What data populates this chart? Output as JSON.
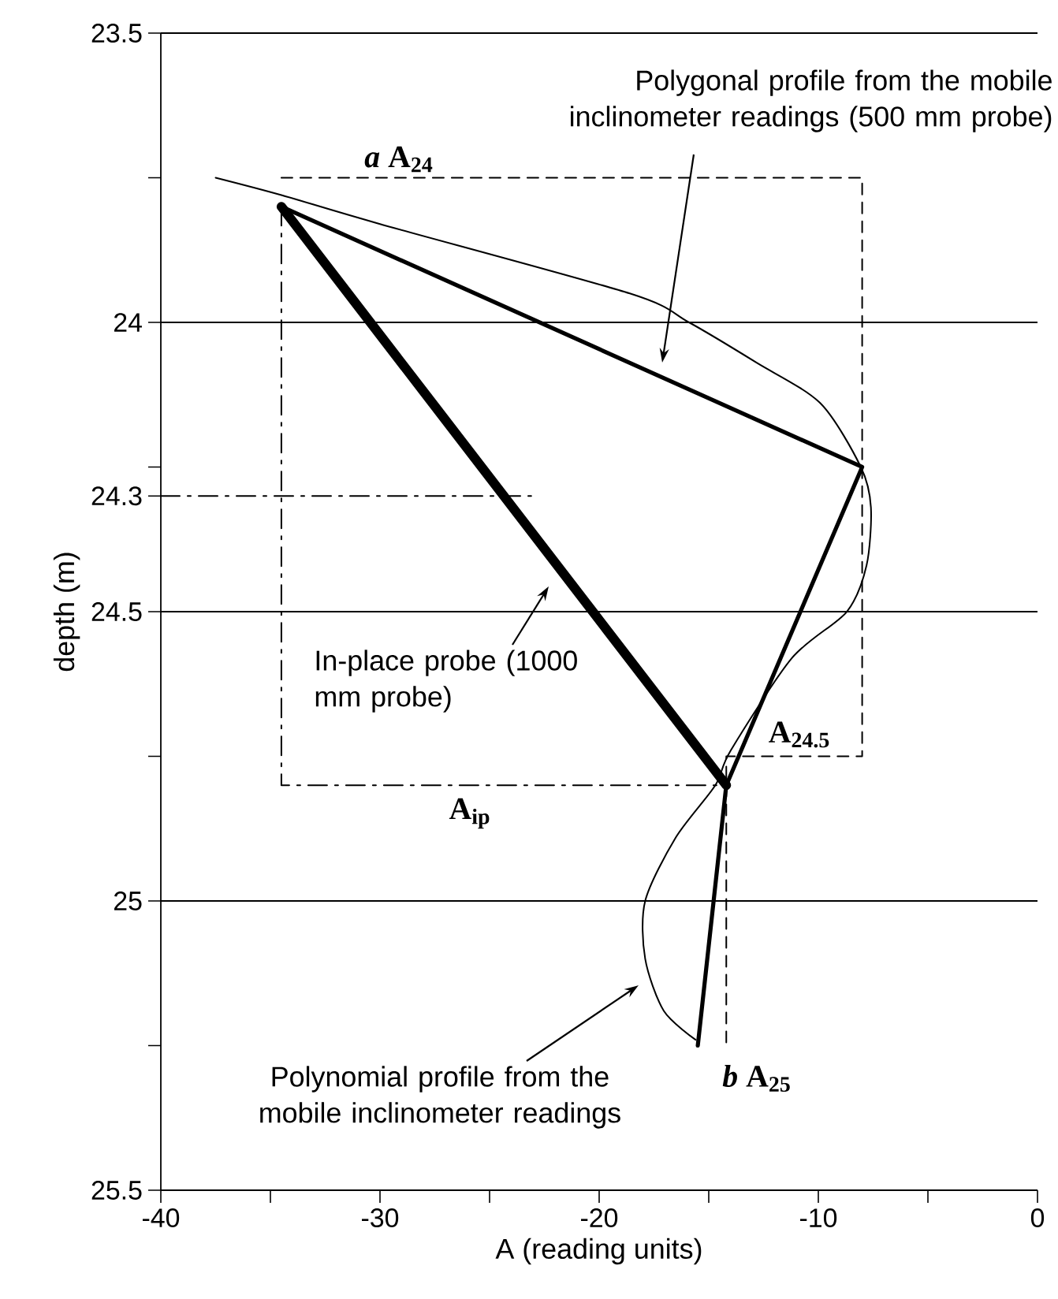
{
  "chart_data": {
    "type": "line",
    "xlabel": "A (reading units)",
    "ylabel": "depth (m)",
    "xlim": [
      -40,
      0
    ],
    "ylim": [
      25.5,
      23.5
    ],
    "xticks": [
      -40,
      {
        "value": -35,
        "label": null
      },
      -30,
      {
        "value": -25,
        "label": null
      },
      -20,
      {
        "value": -15,
        "label": null
      },
      -10,
      {
        "value": -5,
        "label": null
      },
      0
    ],
    "yticks": [
      23.5,
      {
        "value": 23.75,
        "label": null
      },
      24,
      {
        "value": 24.25,
        "label": null
      },
      24.3,
      24.5,
      {
        "value": 24.75,
        "label": null
      },
      25,
      {
        "value": 25.25,
        "label": null
      },
      25.5
    ],
    "marker": "none",
    "series": [
      {
        "color": "#000000",
        "x": [
          -37.5,
          -34.5,
          -30,
          -18.6,
          -15.9,
          -12.8,
          -9.9,
          -8.06,
          -7.6,
          -7.8,
          -8.7,
          -11.2,
          -14,
          -14.7,
          -16.5,
          -17.9,
          -17.9,
          -17.05,
          -15.6
        ],
        "values": [
          23.75,
          23.78,
          23.83,
          23.95,
          24.0,
          24.07,
          24.14,
          24.25,
          24.32,
          24.42,
          24.5,
          24.58,
          24.74,
          24.8,
          24.89,
          25.0,
          25.1,
          25.19,
          25.24
        ]
      },
      {
        "color": "#000000",
        "x": [
          -34.5,
          -8,
          -14.2,
          -15.5
        ],
        "values": [
          23.8,
          24.25,
          24.8,
          25.25
        ]
      },
      {
        "color": "#000000",
        "x": [
          -34.5,
          -14.2
        ],
        "values": [
          23.8,
          24.8
        ]
      },
      {
        "color": "#000000",
        "line_style": "dashed",
        "x": [
          -34.5,
          -8,
          -8,
          -14.2,
          -14.2
        ],
        "values": [
          23.75,
          23.75,
          24.75,
          24.75,
          25.25
        ]
      },
      {
        "color": "#000000",
        "line_style": "dashdot",
        "x": [
          -34.5,
          -34.5,
          -14.2
        ],
        "values": [
          23.8,
          24.8,
          24.8
        ]
      },
      {
        "color": "#000000",
        "line_style": "dashdot",
        "x": [
          -40,
          -23.1
        ],
        "values": [
          24.3,
          24.3
        ]
      }
    ],
    "ref_lines": [
      {
        "axis": "y",
        "value": 23.5
      },
      {
        "axis": "y",
        "value": 24
      },
      {
        "axis": "y",
        "value": 24.5
      },
      {
        "axis": "y",
        "value": 25
      }
    ],
    "annotations": [
      "Polygonal profile from the mobile inclinometer readings (500 mm probe)",
      "In-place probe (1000 mm probe)",
      "Polynomial profile from the mobile inclinometer readings",
      "*a* A$_{24}$",
      "A$_{24.5}$",
      "A$_{ip}$",
      "*b* A$_{25}$"
    ]
  }
}
